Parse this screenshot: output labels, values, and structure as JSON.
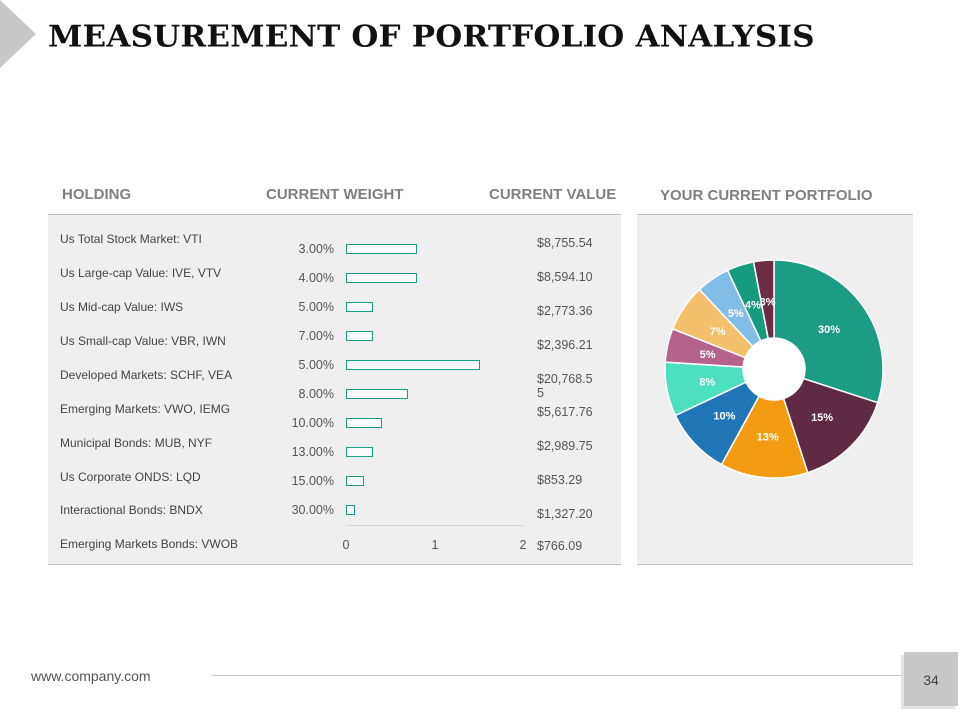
{
  "title": "MEASUREMENT OF PORTFOLIO ANALYSIS",
  "headers": {
    "holding": "HOLDING",
    "weight": "CURRENT WEIGHT",
    "value": "CURRENT VALUE",
    "portfolio": "YOUR CURRENT PORTFOLIO"
  },
  "holdings": [
    "Us Total Stock Market: VTI",
    "Us Large-cap Value: IVE, VTV",
    "Us Mid-cap Value: IWS",
    "Us Small-cap Value: VBR, IWN",
    "Developed Markets: SCHF, VEA",
    "Emerging Markets: VWO, IEMG",
    "Municipal Bonds: MUB, NYF",
    "Us Corporate ONDS: LQD",
    "Interactional Bonds: BNDX",
    "Emerging Markets Bonds: VWOB"
  ],
  "values": [
    "$8,755.54",
    "$8,594.10",
    "$2,773.36",
    "$2,396.21",
    "$20,768.55",
    "$5,617.76",
    "$2,989.75",
    "$853.29",
    "$1,327.20",
    "$766.09"
  ],
  "chart_data": [
    {
      "type": "bar",
      "orientation": "horizontal",
      "categories": [
        "3.00%",
        "4.00%",
        "5.00%",
        "7.00%",
        "5.00%",
        "8.00%",
        "10.00%",
        "13.00%",
        "15.00%",
        "30.00%"
      ],
      "values": [
        0.8,
        0.8,
        0.3,
        0.3,
        1.5,
        0.7,
        0.4,
        0.3,
        0.2,
        0.1
      ],
      "xlim": [
        0,
        2
      ],
      "x_ticks": [
        "0",
        "1",
        "2"
      ],
      "bar_color": "#1a9c86",
      "title": "",
      "xlabel": "",
      "ylabel": ""
    },
    {
      "type": "pie",
      "donut": true,
      "labels": [
        "30%",
        "15%",
        "13%",
        "10%",
        "8%",
        "5%",
        "7%",
        "5%",
        "4%",
        "3%"
      ],
      "values": [
        30,
        15,
        13,
        10,
        8,
        5,
        7,
        5,
        4,
        3
      ],
      "colors": [
        "#1c9c82",
        "#5e2a44",
        "#f39c12",
        "#2176b5",
        "#4de0c0",
        "#b5638a",
        "#f5c06c",
        "#82bde8",
        "#159b7d",
        "#6b2c44"
      ],
      "title": ""
    }
  ],
  "footer": {
    "website": "www.company.com",
    "page_number": "34"
  }
}
